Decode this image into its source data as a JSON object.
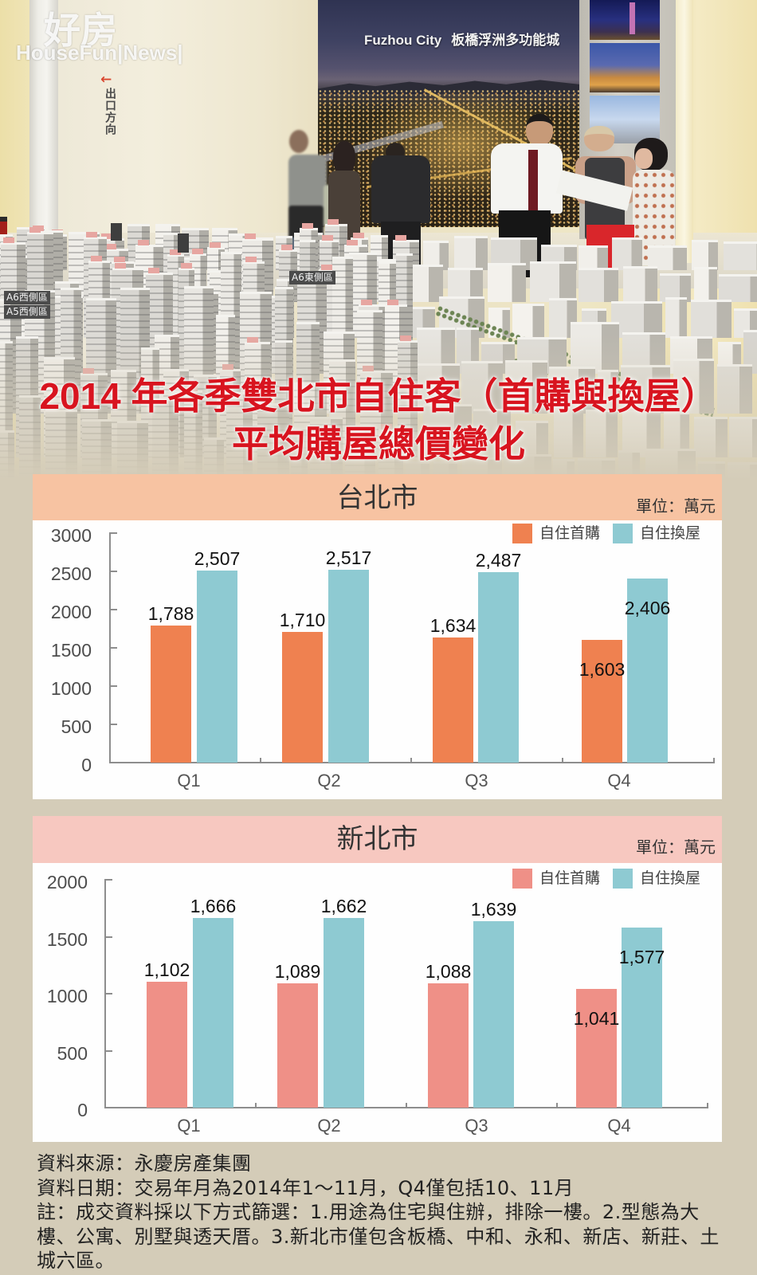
{
  "hero": {
    "watermark": {
      "brand_cn": "好房",
      "brand_en": "HouseFun|News|"
    },
    "exit_sign": {
      "arrow": "←",
      "text": "出口方向"
    },
    "poster": {
      "title": "Fuzhou City",
      "subtitle": "板橋浮洲多功能城"
    },
    "model_labels": [
      "A6西側區",
      "A5西側區",
      "A6東側區"
    ]
  },
  "title": {
    "line1": "2014 年各季雙北市自住客（首購與換屋）",
    "line2": "平均購屋總價變化",
    "color": "#d8141f"
  },
  "chart_data": [
    {
      "type": "bar",
      "title": "台北市",
      "unit_label": "單位：萬元",
      "xlabel": "",
      "ylabel": "",
      "categories": [
        "Q1",
        "Q2",
        "Q3",
        "Q4"
      ],
      "series": [
        {
          "name": "自住首購",
          "color": "#ef8150",
          "values": [
            1788,
            1710,
            1634,
            1603
          ],
          "labels": [
            "1,788",
            "1,710",
            "1,634",
            "1,603"
          ]
        },
        {
          "name": "自住換屋",
          "color": "#8ecad2",
          "values": [
            2507,
            2517,
            2487,
            2406
          ],
          "labels": [
            "2,507",
            "2,517",
            "2,487",
            "2,406"
          ]
        }
      ],
      "ylim": [
        0,
        3000
      ],
      "yticks": [
        0,
        500,
        1000,
        1500,
        2000,
        2500,
        3000
      ],
      "grid": false,
      "legend_position": "top-right",
      "label_inside": [
        false,
        false,
        false,
        true
      ],
      "header_color": "#f7c3a2"
    },
    {
      "type": "bar",
      "title": "新北市",
      "unit_label": "單位：萬元",
      "xlabel": "",
      "ylabel": "",
      "categories": [
        "Q1",
        "Q2",
        "Q3",
        "Q4"
      ],
      "series": [
        {
          "name": "自住首購",
          "color": "#ef9087",
          "values": [
            1102,
            1089,
            1088,
            1041
          ],
          "labels": [
            "1,102",
            "1,089",
            "1,088",
            "1,041"
          ]
        },
        {
          "name": "自住換屋",
          "color": "#8ecad2",
          "values": [
            1666,
            1662,
            1639,
            1577
          ],
          "labels": [
            "1,666",
            "1,662",
            "1,639",
            "1,577"
          ]
        }
      ],
      "ylim": [
        0,
        2000
      ],
      "yticks": [
        0,
        500,
        1000,
        1500,
        2000
      ],
      "grid": false,
      "legend_position": "top-right",
      "label_inside": [
        false,
        false,
        false,
        true
      ],
      "header_color": "#f7c8c0"
    }
  ],
  "notes": {
    "source": "資料來源：永慶房產集團",
    "date": "資料日期：交易年月為2014年1～11月，Q4僅包括10、11月",
    "note_lines": [
      "註：成交資料採以下方式篩選：1.用途為住宅與住辦，排除一樓。2.型態為大",
      "樓、公寓、別墅與透天厝。3.新北市僅包含板橋、中和、永和、新店、新莊、土",
      "城六區。"
    ]
  },
  "theme": {
    "page_background": "#d4ccb8",
    "panel_background": "#fefefe",
    "axis_color": "#8d8d8d"
  }
}
